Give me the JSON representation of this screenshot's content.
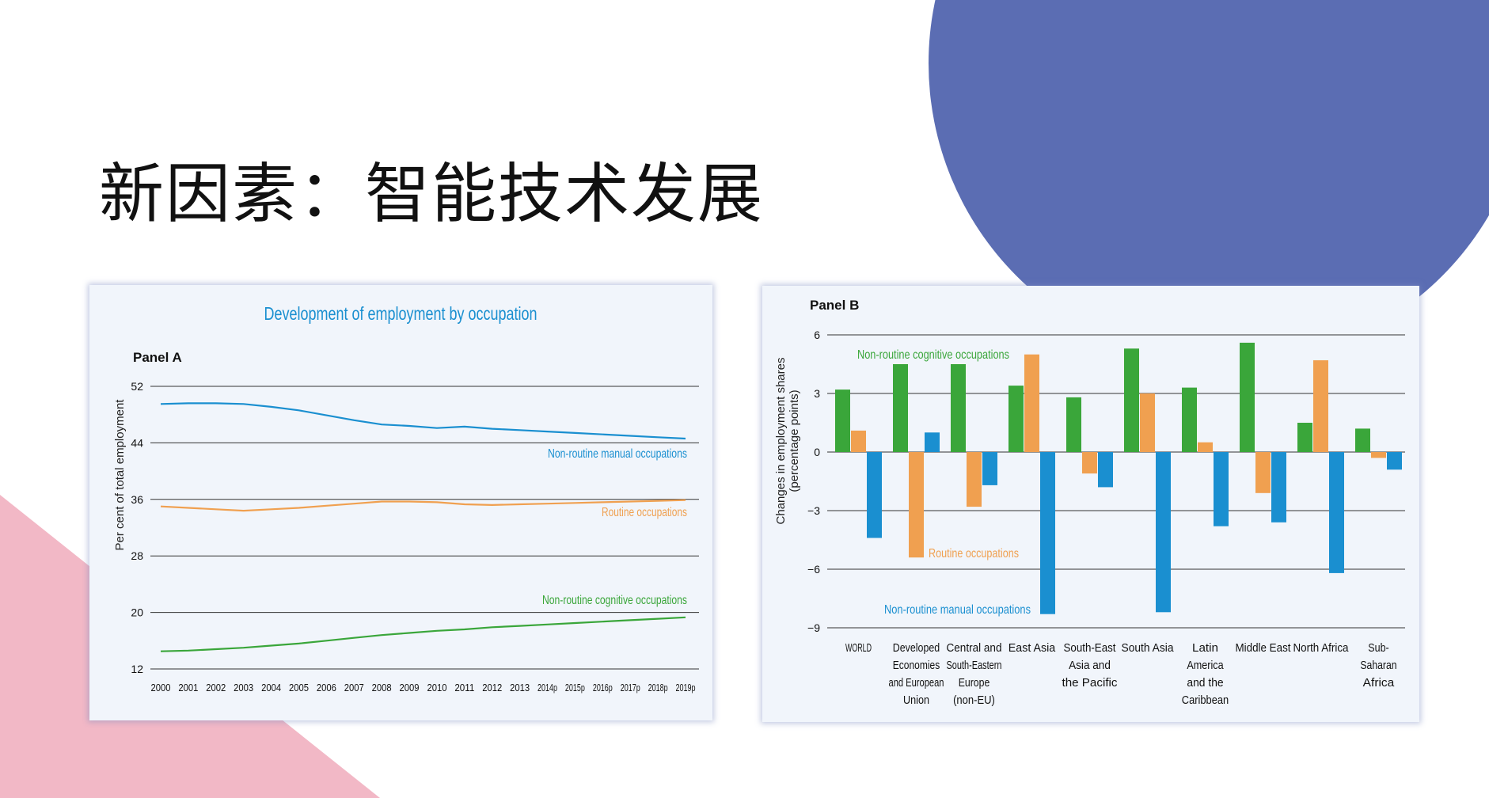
{
  "slide": {
    "title": "新因素：智能技术发展",
    "colors": {
      "circle": "#5b6db3",
      "triangle": "#f2b8c6",
      "panel_bg": "#f1f5fb"
    }
  },
  "chart_data": [
    {
      "type": "line",
      "title": "Development of employment by occupation",
      "panel_label": "Panel A",
      "ylabel": "Per cent of total employment",
      "xlabel": "",
      "ylim": [
        12,
        52
      ],
      "yticks": [
        12,
        20,
        28,
        36,
        44,
        52
      ],
      "grid": true,
      "x": [
        "2000",
        "2001",
        "2002",
        "2003",
        "2004",
        "2005",
        "2006",
        "2007",
        "2008",
        "2009",
        "2010",
        "2011",
        "2012",
        "2013",
        "2014p",
        "2015p",
        "2016p",
        "2017p",
        "2018p",
        "2019p"
      ],
      "series": [
        {
          "name": "Non-routine manual occupations",
          "color": "#1a8fd0",
          "values": [
            49.5,
            49.6,
            49.6,
            49.5,
            49.1,
            48.6,
            47.9,
            47.2,
            46.6,
            46.4,
            46.1,
            46.3,
            46.0,
            45.8,
            45.6,
            45.4,
            45.2,
            45.0,
            44.8,
            44.6
          ]
        },
        {
          "name": "Routine occupations",
          "color": "#f0a050",
          "values": [
            35.0,
            34.8,
            34.6,
            34.4,
            34.6,
            34.8,
            35.1,
            35.4,
            35.7,
            35.7,
            35.6,
            35.3,
            35.2,
            35.3,
            35.4,
            35.5,
            35.6,
            35.7,
            35.8,
            35.9
          ]
        },
        {
          "name": "Non-routine cognitive occupations",
          "color": "#3aa63a",
          "values": [
            14.5,
            14.6,
            14.8,
            15.0,
            15.3,
            15.6,
            16.0,
            16.4,
            16.8,
            17.1,
            17.4,
            17.6,
            17.9,
            18.1,
            18.3,
            18.5,
            18.7,
            18.9,
            19.1,
            19.3
          ]
        }
      ]
    },
    {
      "type": "bar",
      "panel_label": "Panel B",
      "ylabel": "Changes in employment shares",
      "ylabel2": "(percentage points)",
      "xlabel": "",
      "ylim": [
        -9,
        6
      ],
      "yticks": [
        6,
        3,
        0,
        -3,
        -6,
        -9
      ],
      "ytick_labels": [
        "6",
        "3",
        "0",
        "−3",
        "−6",
        "−9"
      ],
      "grid": true,
      "categories": [
        [
          "WORLD"
        ],
        [
          "Developed",
          "Economies",
          "and European",
          "Union"
        ],
        [
          "Central and",
          "South-Eastern",
          "Europe",
          "(non-EU)"
        ],
        [
          "East Asia"
        ],
        [
          "South-East",
          "Asia and",
          "the Pacific"
        ],
        [
          "South Asia"
        ],
        [
          "Latin",
          "America",
          "and the",
          "Caribbean"
        ],
        [
          "Middle East"
        ],
        [
          "North Africa"
        ],
        [
          "Sub-",
          "Saharan",
          "Africa"
        ]
      ],
      "series": [
        {
          "name": "Non-routine cognitive occupations",
          "color": "#3aa63a",
          "values": [
            3.2,
            4.5,
            4.5,
            3.4,
            2.8,
            5.3,
            3.3,
            5.6,
            1.5,
            1.2
          ]
        },
        {
          "name": "Routine occupations",
          "color": "#f0a050",
          "values": [
            1.1,
            -5.4,
            -2.8,
            5.0,
            -1.1,
            3.0,
            0.5,
            -2.1,
            4.7,
            -0.3
          ]
        },
        {
          "name": "Non-routine manual occupations",
          "color": "#1a8fd0",
          "values": [
            -4.4,
            1.0,
            -1.7,
            -8.3,
            -1.8,
            -8.2,
            -3.8,
            -3.6,
            -6.2,
            -0.9
          ]
        }
      ]
    }
  ]
}
